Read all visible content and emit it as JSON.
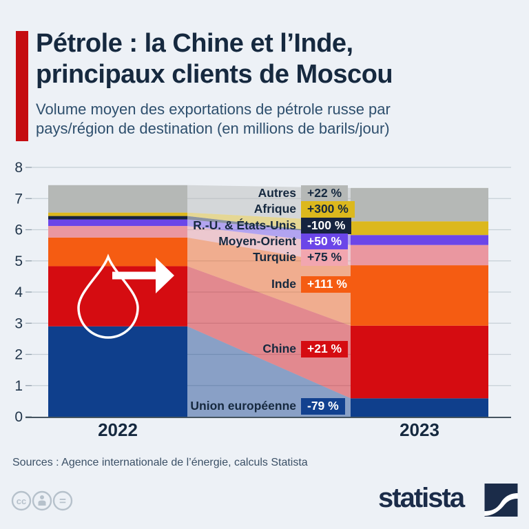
{
  "header": {
    "title_line1": "Pétrole : la Chine et l’Inde,",
    "title_line2": "principaux clients de Moscou",
    "subtitle_line1": "Volume moyen des exportations de pétrole russe par",
    "subtitle_line2": "pays/région de destination (en millions de barils/jour)",
    "accent_color": "#c50d11"
  },
  "chart_data": {
    "type": "bar",
    "variant": "alluvial-flow-stacked-comparison",
    "categories": [
      "2022",
      "2023"
    ],
    "ylim": [
      0,
      8
    ],
    "ytick_step": 1,
    "grid": true,
    "unit": "millions de barils/jour",
    "series": [
      {
        "label": "Autres",
        "change": "+22 %",
        "color": "#b5b8b6",
        "badge_color": "#b5b8b6",
        "badge_text_color": "#16293f",
        "values": [
          0.88,
          1.07
        ]
      },
      {
        "label": "Afrique",
        "change": "+300 %",
        "color": "#dcb81d",
        "badge_color": "#dcb81d",
        "badge_text_color": "#16293f",
        "values": [
          0.11,
          0.44
        ]
      },
      {
        "label": "R.-U. & États-Unis",
        "change": "-100 %",
        "color": "#16233f",
        "badge_color": "#16233f",
        "badge_text_color": "#ffffff",
        "values": [
          0.11,
          0.0
        ]
      },
      {
        "label": "Moyen-Orient",
        "change": "+50 %",
        "color": "#6b46e8",
        "badge_color": "#6b46e8",
        "badge_text_color": "#ffffff",
        "values": [
          0.21,
          0.32
        ]
      },
      {
        "label": "Turquie",
        "change": "+75 %",
        "color": "#ea97a0",
        "badge_color": "#f2a6af",
        "badge_text_color": "#16293f",
        "values": [
          0.37,
          0.65
        ]
      },
      {
        "label": "Inde",
        "change": "+111 %",
        "color": "#f55c12",
        "badge_color": "#f55c12",
        "badge_text_color": "#ffffff",
        "values": [
          0.92,
          1.94
        ]
      },
      {
        "label": "Chine",
        "change": "+21 %",
        "color": "#d50c11",
        "badge_color": "#d50c11",
        "badge_text_color": "#ffffff",
        "values": [
          1.93,
          2.33
        ]
      },
      {
        "label": "Union européenne",
        "change": "-79 %",
        "color": "#0f3f8c",
        "badge_color": "#12418f",
        "badge_text_color": "#ffffff",
        "values": [
          2.9,
          0.59
        ]
      }
    ],
    "legend_position": "center-labels"
  },
  "footer": {
    "sources": "Sources : Agence internationale de l’énergie, calculs Statista",
    "license_glyphs": {
      "cc": "cc",
      "equals": "="
    },
    "brand": "statista"
  }
}
